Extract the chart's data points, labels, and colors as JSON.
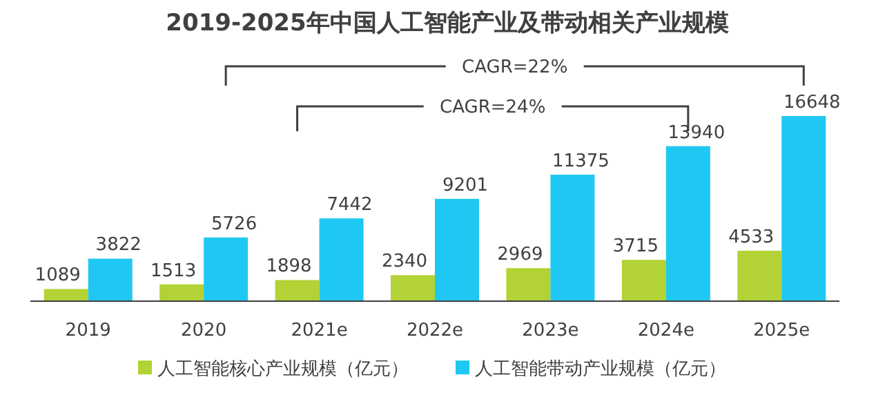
{
  "chart_data": {
    "type": "bar",
    "title": "2019-2025年中国人工智能产业及带动相关产业规模",
    "categories": [
      "2019",
      "2020",
      "2021e",
      "2022e",
      "2023e",
      "2024e",
      "2025e"
    ],
    "series": [
      {
        "name": "人工智能核心产业规模（亿元）",
        "color": "#b2d235",
        "values": [
          1089,
          1513,
          1898,
          2340,
          2969,
          3715,
          4533
        ]
      },
      {
        "name": "人工智能带动产业规模（亿元）",
        "color": "#1fc8f2",
        "values": [
          3822,
          5726,
          7442,
          9201,
          11375,
          13940,
          16648
        ]
      }
    ],
    "data_labels": true,
    "legend": "bottom",
    "annotations": [
      "CAGR=22%",
      "CAGR=24%"
    ]
  }
}
